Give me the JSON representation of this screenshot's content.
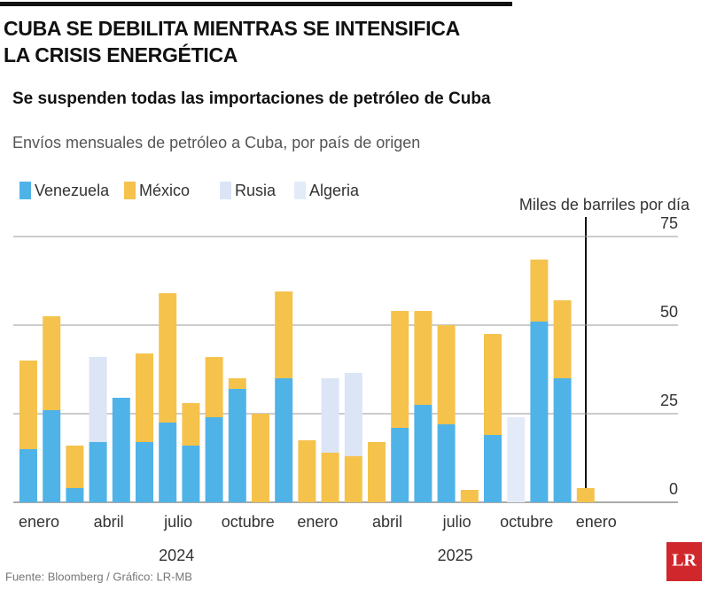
{
  "chart_data": {
    "type": "bar",
    "stacked": true,
    "title_lines": [
      "CUBA SE DEBILITA MIENTRAS SE INTENSIFICA",
      "LA CRISIS ENERGÉTICA"
    ],
    "subtitle": "Se suspenden todas las importaciones de petróleo de Cuba",
    "description": "Envíos mensuales de petróleo a Cuba, por país de origen",
    "y_label": "Miles de barriles por día",
    "source": "Fuente: Bloomberg / Gráfico: LR-MB",
    "logo": "LR",
    "categories": [
      "enero",
      null,
      null,
      "abril",
      null,
      null,
      "julio",
      null,
      null,
      "octubre",
      null,
      null,
      "enero",
      null,
      null,
      "abril",
      null,
      null,
      "julio",
      null,
      null,
      "octubre",
      null,
      null,
      "enero"
    ],
    "year_labels": [
      "2024",
      "2025"
    ],
    "series": [
      {
        "name": "Venezuela",
        "color": "#4fb3e8",
        "values": [
          15,
          26,
          4,
          17,
          29.5,
          17,
          22.5,
          16,
          24,
          32,
          null,
          35,
          null,
          null,
          null,
          null,
          21,
          27.5,
          22,
          null,
          19,
          null,
          51,
          35,
          null
        ]
      },
      {
        "name": "México",
        "color": "#f5c24c",
        "values": [
          25,
          26.5,
          12,
          null,
          null,
          25,
          36.5,
          12,
          17,
          3,
          25,
          24.5,
          17.5,
          14,
          13,
          17,
          33,
          26.5,
          28,
          3.5,
          28.5,
          null,
          17.5,
          22,
          4
        ]
      },
      {
        "name": "Rusia",
        "color": "#dbe5f6",
        "values": [
          null,
          null,
          null,
          24,
          null,
          null,
          null,
          null,
          null,
          null,
          null,
          null,
          null,
          21,
          23.5,
          null,
          null,
          null,
          null,
          null,
          null,
          null,
          null,
          null,
          null
        ]
      },
      {
        "name": "Algeria",
        "color": "#e4ebf8",
        "values": [
          null,
          null,
          null,
          null,
          null,
          null,
          null,
          null,
          null,
          null,
          null,
          null,
          null,
          null,
          null,
          null,
          null,
          null,
          null,
          null,
          null,
          24,
          null,
          null,
          null
        ]
      }
    ],
    "ylim": [
      0,
      75
    ],
    "yticks": [
      0,
      25,
      50,
      75
    ],
    "grid": true
  }
}
